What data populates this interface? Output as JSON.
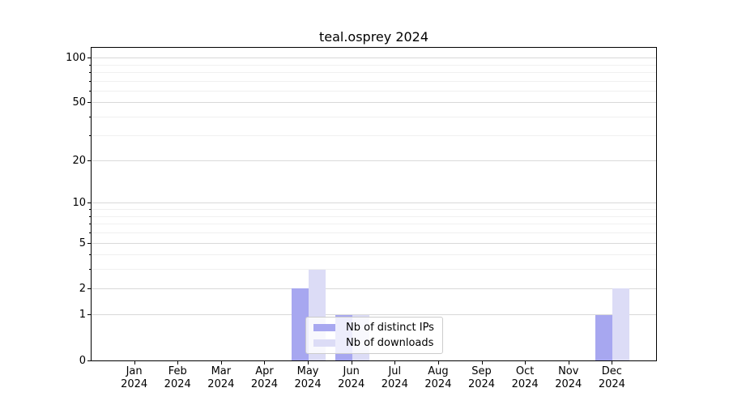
{
  "page": {
    "background": "#ffffff"
  },
  "chart_data": {
    "type": "bar",
    "title": "teal.osprey 2024",
    "categories": [
      "Jan",
      "Feb",
      "Mar",
      "Apr",
      "May",
      "Jun",
      "Jul",
      "Aug",
      "Sep",
      "Oct",
      "Nov",
      "Dec"
    ],
    "xtick_year": "2024",
    "series": [
      {
        "name": "Nb of distinct IPs",
        "color": "#a7a7f0",
        "values": [
          0,
          0,
          0,
          0,
          2,
          1,
          0,
          0,
          0,
          0,
          0,
          1
        ]
      },
      {
        "name": "Nb of downloads",
        "color": "#dcdcf6",
        "values": [
          0,
          0,
          0,
          0,
          3,
          1,
          0,
          0,
          0,
          0,
          0,
          2
        ]
      }
    ],
    "yscale": "log1p",
    "ylim": [
      0,
      117
    ],
    "yticks": [
      0,
      1,
      2,
      5,
      10,
      20,
      50,
      100
    ],
    "minor_yticks": [
      3,
      4,
      6,
      7,
      8,
      9,
      30,
      40,
      60,
      70,
      80,
      90
    ],
    "grid": {
      "axis": "y",
      "major_color": "#d9d9d9",
      "minor_color": "#f0f0f0"
    },
    "legend_position": "inside-lower-center",
    "axis_color": "#000000"
  }
}
